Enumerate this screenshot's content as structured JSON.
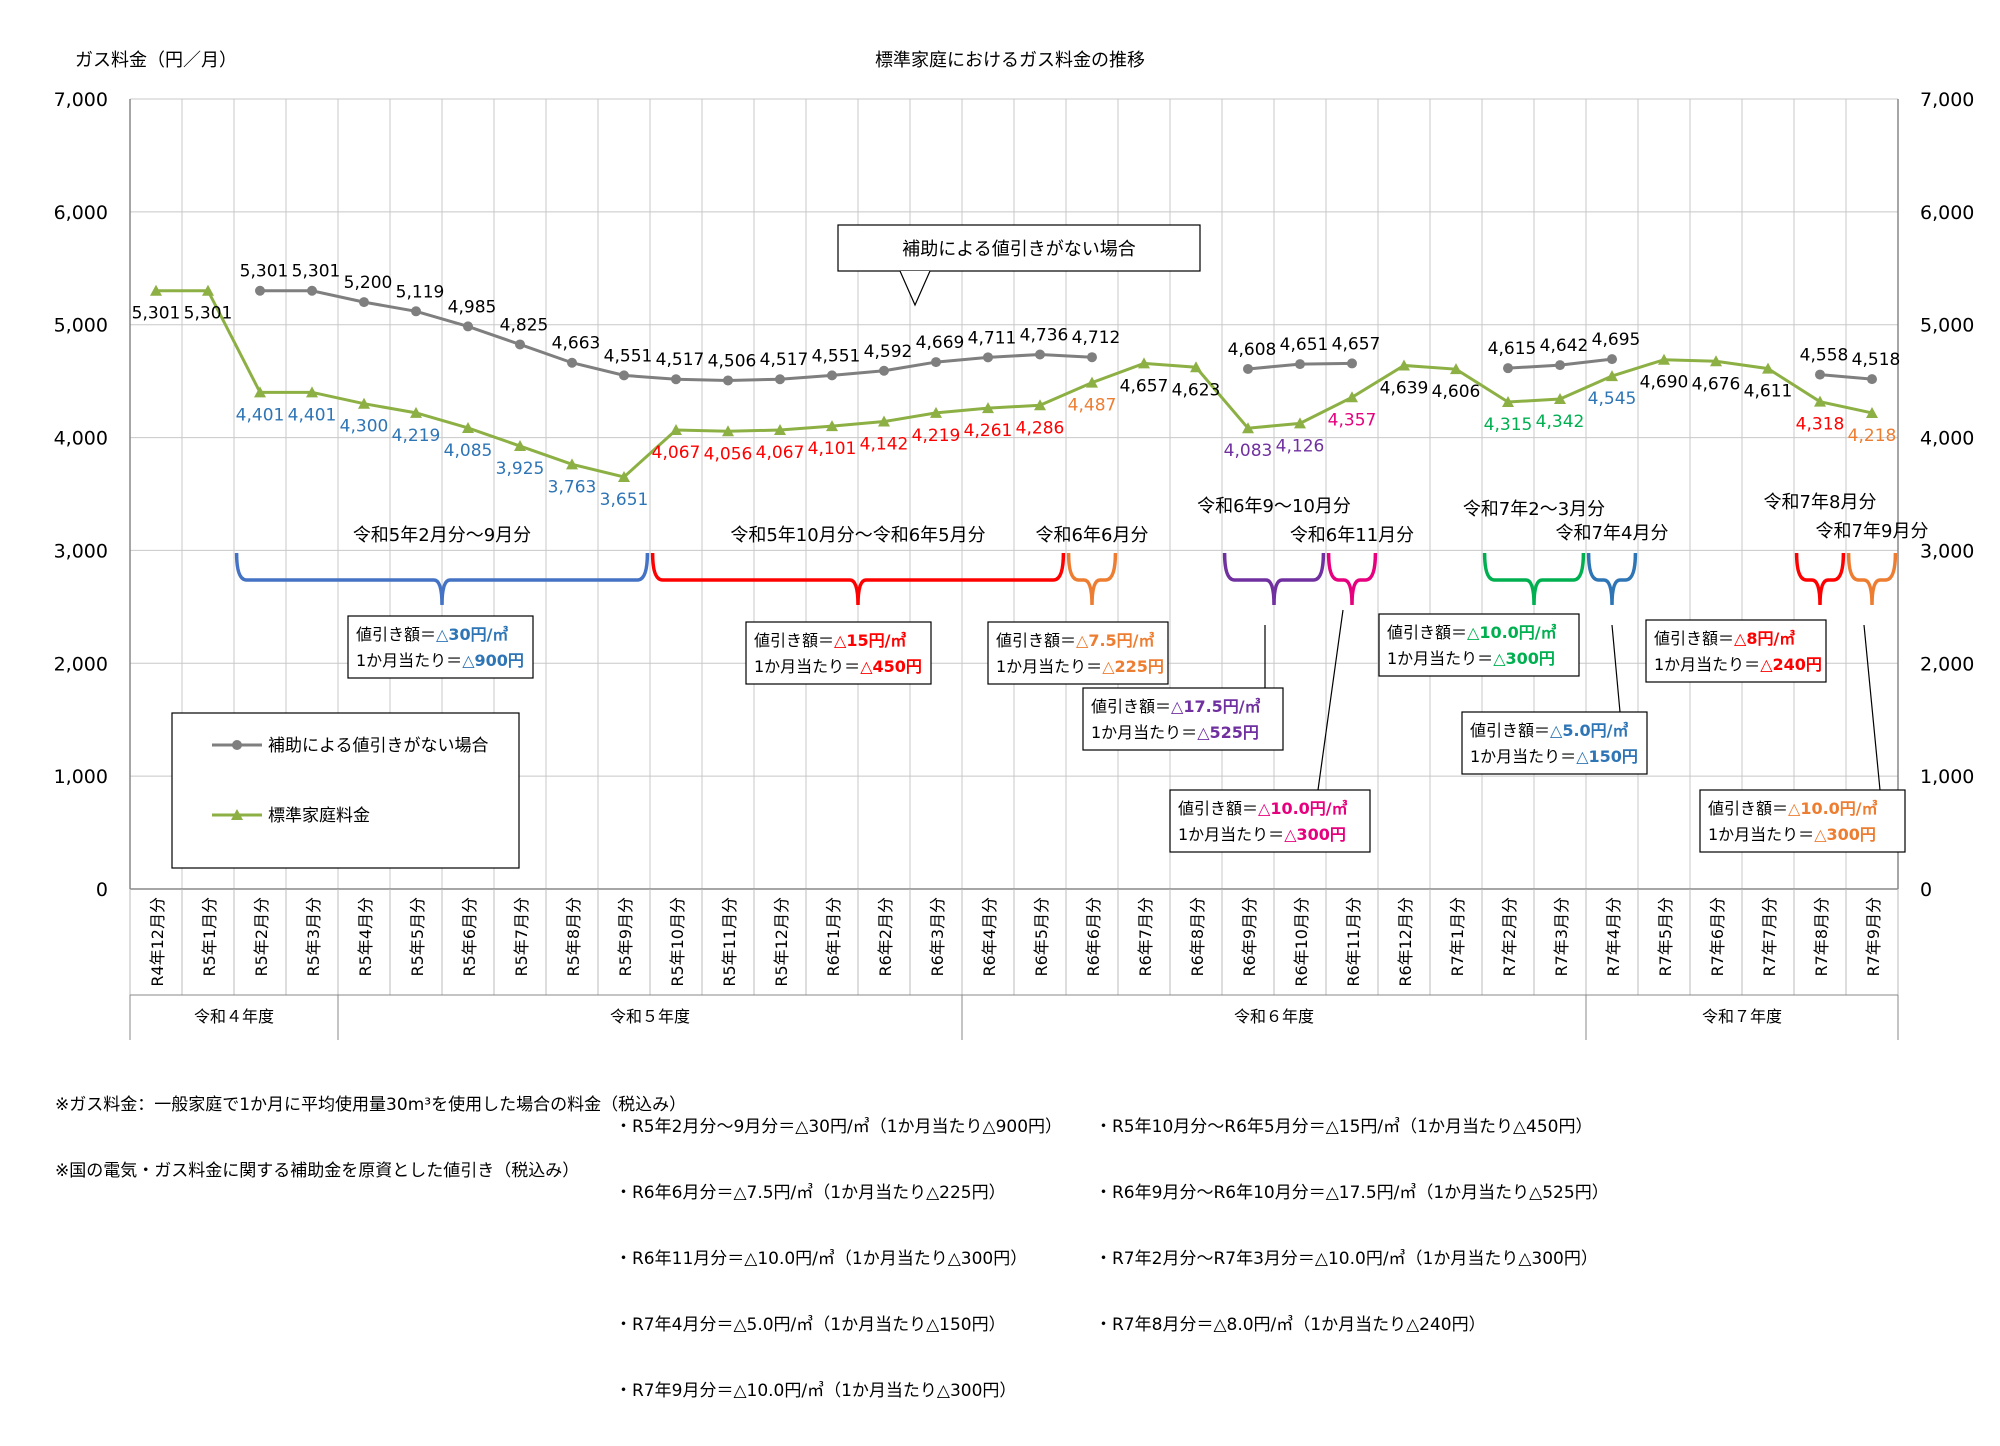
{
  "chart_data": {
    "type": "line",
    "title": "標準家庭におけるガス料金の推移",
    "ylabel": "ガス料金（円／月）",
    "ylim": [
      0,
      7000
    ],
    "yticks": [
      0,
      1000,
      2000,
      3000,
      4000,
      5000,
      6000,
      7000
    ],
    "ytick_labels": [
      "0",
      "1,000",
      "2,000",
      "3,000",
      "4,000",
      "5,000",
      "6,000",
      "7,000"
    ],
    "grid": true,
    "categories": [
      "R4年12月分",
      "R5年1月分",
      "R5年2月分",
      "R5年3月分",
      "R5年4月分",
      "R5年5月分",
      "R5年6月分",
      "R5年7月分",
      "R5年8月分",
      "R5年9月分",
      "R5年10月分",
      "R5年11月分",
      "R5年12月分",
      "R6年1月分",
      "R6年2月分",
      "R6年3月分",
      "R6年4月分",
      "R6年5月分",
      "R6年6月分",
      "R6年7月分",
      "R6年8月分",
      "R6年9月分",
      "R6年10月分",
      "R6年11月分",
      "R6年12月分",
      "R7年1月分",
      "R7年2月分",
      "R7年3月分",
      "R7年4月分",
      "R7年5月分",
      "R7年6月分",
      "R7年7月分",
      "R7年8月分",
      "R7年9月分"
    ],
    "fiscal_years": [
      {
        "label": "令和４年度",
        "start": 0,
        "end": 3
      },
      {
        "label": "令和５年度",
        "start": 4,
        "end": 15
      },
      {
        "label": "令和６年度",
        "start": 16,
        "end": 27
      },
      {
        "label": "令和７年度",
        "start": 28,
        "end": 33
      }
    ],
    "series": [
      {
        "name": "補助による値引きがない場合",
        "color": "#7f7f7f",
        "marker": "circle",
        "values": [
          null,
          null,
          5301,
          5301,
          5200,
          5119,
          4985,
          4825,
          4663,
          4551,
          4517,
          4506,
          4517,
          4551,
          4592,
          4669,
          4711,
          4736,
          4712,
          null,
          null,
          4608,
          4651,
          4657,
          null,
          null,
          4615,
          4642,
          4695,
          null,
          null,
          null,
          4558,
          4518
        ],
        "labels": [
          "",
          "",
          "5,301",
          "5,301",
          "5,200",
          "5,119",
          "4,985",
          "4,825",
          "4,663",
          "4,551",
          "4,517",
          "4,506",
          "4,517",
          "4,551",
          "4,592",
          "4,669",
          "4,711",
          "4,736",
          "4,712",
          "",
          "",
          "4,608",
          "4,651",
          "4,657",
          "",
          "",
          "4,615",
          "4,642",
          "4,695",
          "",
          "",
          "",
          "4,558",
          "4,518"
        ]
      },
      {
        "name": "標準家庭料金",
        "color": "#8db045",
        "marker": "triangle",
        "values": [
          5301,
          5301,
          4401,
          4401,
          4300,
          4219,
          4085,
          3925,
          3763,
          3651,
          4067,
          4056,
          4067,
          4101,
          4142,
          4219,
          4261,
          4286,
          4487,
          4657,
          4623,
          4083,
          4126,
          4357,
          4639,
          4606,
          4315,
          4342,
          4545,
          4690,
          4676,
          4611,
          4318,
          4218
        ],
        "labels": [
          "5,301",
          "5,301",
          "4,401",
          "4,401",
          "4,300",
          "4,219",
          "4,085",
          "3,925",
          "3,763",
          "3,651",
          "4,067",
          "4,056",
          "4,067",
          "4,101",
          "4,142",
          "4,219",
          "4,261",
          "4,286",
          "4,487",
          "4,657",
          "4,623",
          "4,083",
          "4,126",
          "4,357",
          "4,639",
          "4,606",
          "4,315",
          "4,342",
          "4,545",
          "4,690",
          "4,676",
          "4,611",
          "4,318",
          "4,218"
        ],
        "label_colors": [
          "#000",
          "#000",
          "#2E75B6",
          "#2E75B6",
          "#2E75B6",
          "#2E75B6",
          "#2E75B6",
          "#2E75B6",
          "#2E75B6",
          "#2E75B6",
          "#FF0000",
          "#FF0000",
          "#FF0000",
          "#FF0000",
          "#FF0000",
          "#FF0000",
          "#FF0000",
          "#FF0000",
          "#ED7D31",
          "#000",
          "#000",
          "#7030A0",
          "#7030A0",
          "#E6007E",
          "#000",
          "#000",
          "#00B050",
          "#00B050",
          "#2E75B6",
          "#000",
          "#000",
          "#000",
          "#FF0000",
          "#ED7D31"
        ]
      }
    ],
    "callout": "補助による値引きがない場合",
    "periods": [
      {
        "label": "令和5年2月分～9月分",
        "start": 2,
        "end": 9,
        "color": "#4472C4",
        "rate_label": "値引き額＝",
        "rate": "△30円/㎥",
        "monthly_label": "1か月当たり＝",
        "monthly": "△900円",
        "rate_color": "#2E75B6"
      },
      {
        "label": "令和5年10月分～令和6年5月分",
        "start": 10,
        "end": 17,
        "color": "#FF0000",
        "rate_label": "値引き額＝",
        "rate": "△15円/㎥",
        "monthly_label": "1か月当たり＝",
        "monthly": "△450円",
        "rate_color": "#FF0000"
      },
      {
        "label": "令和6年6月分",
        "start": 18,
        "end": 18,
        "color": "#ED7D31",
        "rate_label": "値引き額＝",
        "rate": "△7.5円/㎥",
        "monthly_label": "1か月当たり＝",
        "monthly": "△225円",
        "rate_color": "#ED7D31"
      },
      {
        "label": "令和6年9～10月分",
        "start": 21,
        "end": 22,
        "color": "#7030A0",
        "rate_label": "値引き額＝",
        "rate": "△17.5円/㎥",
        "monthly_label": "1か月当たり＝",
        "monthly": "△525円",
        "rate_color": "#7030A0"
      },
      {
        "label": "令和6年11月分",
        "start": 23,
        "end": 23,
        "color": "#E6007E",
        "rate_label": "値引き額＝",
        "rate": "△10.0円/㎥",
        "monthly_label": "1か月当たり＝",
        "monthly": "△300円",
        "rate_color": "#E6007E"
      },
      {
        "label": "令和7年2～3月分",
        "start": 26,
        "end": 27,
        "color": "#00B050",
        "rate_label": "値引き額＝",
        "rate": "△10.0円/㎥",
        "monthly_label": "1か月当たり＝",
        "monthly": "△300円",
        "rate_color": "#00B050"
      },
      {
        "label": "令和7年4月分",
        "start": 28,
        "end": 28,
        "color": "#2E75B6",
        "rate_label": "値引き額＝",
        "rate": "△5.0円/㎥",
        "monthly_label": "1か月当たり＝",
        "monthly": "△150円",
        "rate_color": "#2E75B6"
      },
      {
        "label": "令和7年8月分",
        "start": 32,
        "end": 32,
        "color": "#FF0000",
        "rate_label": "値引き額＝",
        "rate": "△8円/㎥",
        "monthly_label": "1か月当たり＝",
        "monthly": "△240円",
        "rate_color": "#FF0000"
      },
      {
        "label": "令和7年9月分",
        "start": 33,
        "end": 33,
        "color": "#ED7D31",
        "rate_label": "値引き額＝",
        "rate": "△10.0円/㎥",
        "monthly_label": "1か月当たり＝",
        "monthly": "△300円",
        "rate_color": "#ED7D31"
      }
    ],
    "legend": [
      "補助による値引きがない場合",
      "標準家庭料金"
    ]
  },
  "notes": {
    "line1": "※ガス料金：一般家庭で1か月に平均使用量30m³を使用した場合の料金（税込み）",
    "line2": "※国の電気・ガス料金に関する補助金を原資とした値引き（税込み）",
    "items_left": [
      "・R5年2月分～9月分＝△30円/㎥（1か月当たり△900円）",
      "・R6年6月分＝△7.5円/㎥（1か月当たり△225円）",
      "・R6年11月分＝△10.0円/㎥（1か月当たり△300円）",
      "・R7年4月分＝△5.0円/㎥（1か月当たり△150円）",
      "・R7年9月分＝△10.0円/㎥（1か月当たり△300円）"
    ],
    "items_right": [
      "・R5年10月分～R6年5月分＝△15円/㎥（1か月当たり△450円）",
      "・R6年9月分～R6年10月分＝△17.5円/㎥（1か月当たり△525円）",
      "・R7年2月分～R7年3月分＝△10.0円/㎥（1か月当たり△300円）",
      "・R7年8月分＝△8.0円/㎥（1か月当たり△240円）"
    ]
  }
}
